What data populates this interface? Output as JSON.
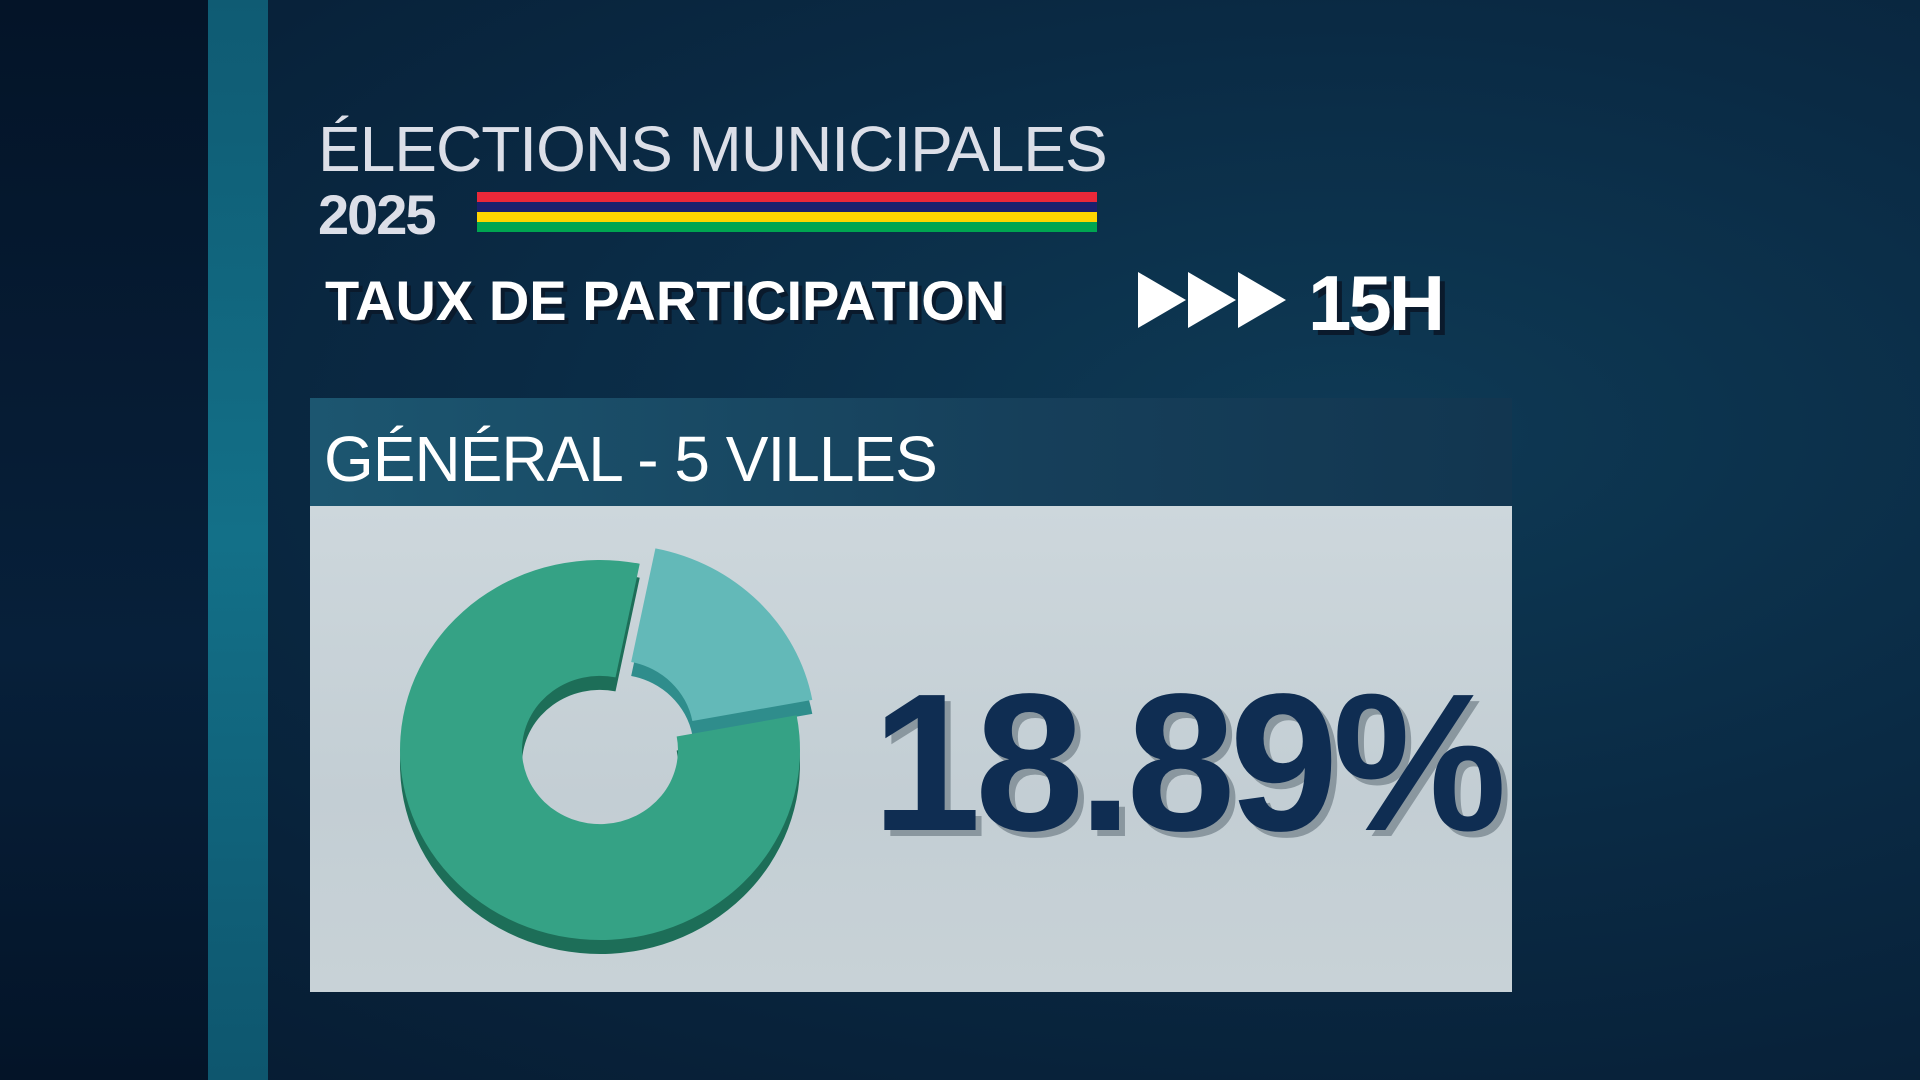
{
  "header": {
    "title": "ÉLECTIONS MUNICIPALES",
    "year": "2025",
    "subtitle": "TAUX DE PARTICIPATION",
    "time": "15H"
  },
  "flag_colors": [
    "#ea2839",
    "#1a206d",
    "#ffd500",
    "#00a551"
  ],
  "panel": {
    "title": "GÉNÉRAL - 5 VILLES"
  },
  "chart_data": {
    "type": "pie",
    "style": "donut-3d",
    "value_label": "18.89%",
    "values": [
      18.89,
      81.11
    ],
    "colors": [
      "#63b9b8",
      "#35a285"
    ]
  }
}
